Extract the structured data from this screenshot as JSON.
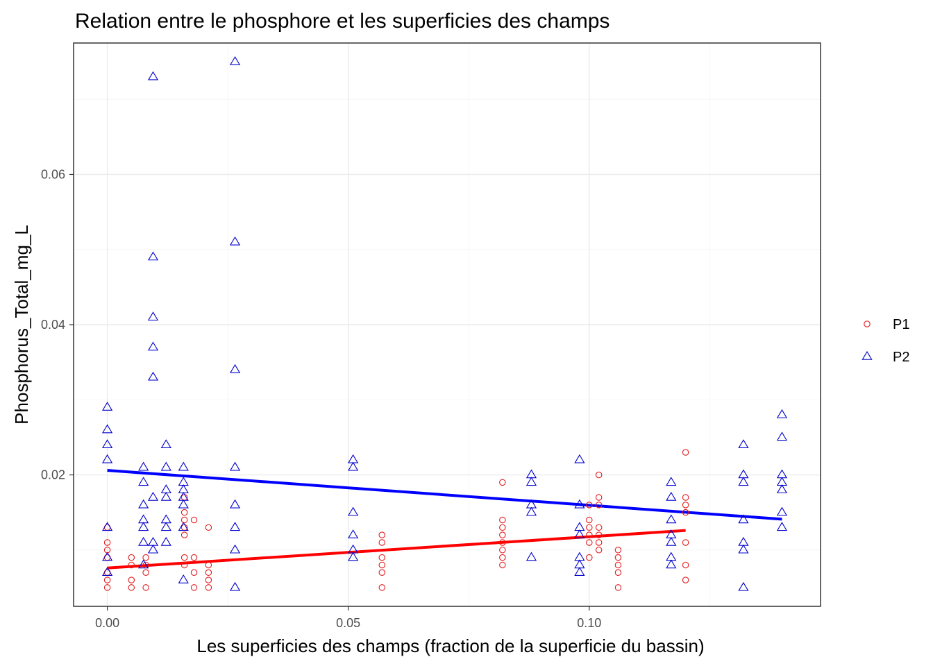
{
  "chart_data": {
    "type": "scatter",
    "title": "Relation entre le phosphore et les superficies des champs",
    "xlabel": "Les superficies des champs (fraction de la superficie du bassin)",
    "ylabel": "Phosphorus_Total_mg_L",
    "xlim": [
      -0.007,
      0.148
    ],
    "ylim": [
      0.0025,
      0.0775
    ],
    "x_ticks": [
      0.0,
      0.05,
      0.1
    ],
    "x_tick_labels": [
      "0.00",
      "0.05",
      "0.10"
    ],
    "y_ticks": [
      0.02,
      0.04,
      0.06
    ],
    "y_tick_labels": [
      "0.02",
      "0.04",
      "0.06"
    ],
    "grid": true,
    "legend_position": "right",
    "series": [
      {
        "name": "P1",
        "color": "#e41a1c",
        "marker": "circle",
        "points": [
          [
            0.0,
            0.005
          ],
          [
            0.0,
            0.006
          ],
          [
            0.0,
            0.007
          ],
          [
            0.0,
            0.009
          ],
          [
            0.0,
            0.01
          ],
          [
            0.0,
            0.011
          ],
          [
            0.0,
            0.013
          ],
          [
            0.005,
            0.005
          ],
          [
            0.005,
            0.006
          ],
          [
            0.005,
            0.008
          ],
          [
            0.005,
            0.009
          ],
          [
            0.008,
            0.005
          ],
          [
            0.008,
            0.007
          ],
          [
            0.008,
            0.008
          ],
          [
            0.008,
            0.009
          ],
          [
            0.016,
            0.008
          ],
          [
            0.016,
            0.009
          ],
          [
            0.016,
            0.012
          ],
          [
            0.016,
            0.013
          ],
          [
            0.016,
            0.014
          ],
          [
            0.016,
            0.015
          ],
          [
            0.016,
            0.017
          ],
          [
            0.018,
            0.005
          ],
          [
            0.018,
            0.007
          ],
          [
            0.018,
            0.009
          ],
          [
            0.018,
            0.014
          ],
          [
            0.021,
            0.005
          ],
          [
            0.021,
            0.006
          ],
          [
            0.021,
            0.007
          ],
          [
            0.021,
            0.008
          ],
          [
            0.021,
            0.013
          ],
          [
            0.057,
            0.005
          ],
          [
            0.057,
            0.007
          ],
          [
            0.057,
            0.008
          ],
          [
            0.057,
            0.009
          ],
          [
            0.057,
            0.011
          ],
          [
            0.057,
            0.012
          ],
          [
            0.082,
            0.008
          ],
          [
            0.082,
            0.009
          ],
          [
            0.082,
            0.01
          ],
          [
            0.082,
            0.011
          ],
          [
            0.082,
            0.012
          ],
          [
            0.082,
            0.013
          ],
          [
            0.082,
            0.014
          ],
          [
            0.082,
            0.019
          ],
          [
            0.1,
            0.009
          ],
          [
            0.1,
            0.011
          ],
          [
            0.1,
            0.012
          ],
          [
            0.1,
            0.013
          ],
          [
            0.1,
            0.014
          ],
          [
            0.1,
            0.016
          ],
          [
            0.102,
            0.01
          ],
          [
            0.102,
            0.011
          ],
          [
            0.102,
            0.012
          ],
          [
            0.102,
            0.013
          ],
          [
            0.102,
            0.016
          ],
          [
            0.102,
            0.017
          ],
          [
            0.102,
            0.02
          ],
          [
            0.106,
            0.005
          ],
          [
            0.106,
            0.007
          ],
          [
            0.106,
            0.008
          ],
          [
            0.106,
            0.009
          ],
          [
            0.106,
            0.01
          ],
          [
            0.12,
            0.006
          ],
          [
            0.12,
            0.008
          ],
          [
            0.12,
            0.011
          ],
          [
            0.12,
            0.015
          ],
          [
            0.12,
            0.016
          ],
          [
            0.12,
            0.017
          ],
          [
            0.12,
            0.023
          ]
        ],
        "trend": [
          [
            0.0,
            0.0076
          ],
          [
            0.12,
            0.0126
          ]
        ]
      },
      {
        "name": "P2",
        "color": "#0000cd",
        "marker": "triangle",
        "points": [
          [
            0.0,
            0.007
          ],
          [
            0.0,
            0.009
          ],
          [
            0.0,
            0.013
          ],
          [
            0.0,
            0.022
          ],
          [
            0.0,
            0.024
          ],
          [
            0.0,
            0.026
          ],
          [
            0.0,
            0.029
          ],
          [
            0.0075,
            0.008
          ],
          [
            0.0075,
            0.011
          ],
          [
            0.0075,
            0.013
          ],
          [
            0.0075,
            0.014
          ],
          [
            0.0075,
            0.016
          ],
          [
            0.0075,
            0.019
          ],
          [
            0.0075,
            0.021
          ],
          [
            0.0095,
            0.01
          ],
          [
            0.0095,
            0.011
          ],
          [
            0.0095,
            0.017
          ],
          [
            0.0095,
            0.033
          ],
          [
            0.0095,
            0.037
          ],
          [
            0.0095,
            0.041
          ],
          [
            0.0095,
            0.049
          ],
          [
            0.0095,
            0.073
          ],
          [
            0.0122,
            0.011
          ],
          [
            0.0122,
            0.013
          ],
          [
            0.0122,
            0.014
          ],
          [
            0.0122,
            0.017
          ],
          [
            0.0122,
            0.018
          ],
          [
            0.0122,
            0.021
          ],
          [
            0.0122,
            0.024
          ],
          [
            0.0158,
            0.006
          ],
          [
            0.0158,
            0.013
          ],
          [
            0.0158,
            0.016
          ],
          [
            0.0158,
            0.017
          ],
          [
            0.0158,
            0.018
          ],
          [
            0.0158,
            0.019
          ],
          [
            0.0158,
            0.021
          ],
          [
            0.0265,
            0.005
          ],
          [
            0.0265,
            0.01
          ],
          [
            0.0265,
            0.013
          ],
          [
            0.0265,
            0.016
          ],
          [
            0.0265,
            0.021
          ],
          [
            0.0265,
            0.034
          ],
          [
            0.0265,
            0.051
          ],
          [
            0.0265,
            0.075
          ],
          [
            0.051,
            0.009
          ],
          [
            0.051,
            0.01
          ],
          [
            0.051,
            0.012
          ],
          [
            0.051,
            0.015
          ],
          [
            0.051,
            0.021
          ],
          [
            0.051,
            0.022
          ],
          [
            0.088,
            0.009
          ],
          [
            0.088,
            0.015
          ],
          [
            0.088,
            0.016
          ],
          [
            0.088,
            0.019
          ],
          [
            0.088,
            0.02
          ],
          [
            0.098,
            0.007
          ],
          [
            0.098,
            0.008
          ],
          [
            0.098,
            0.009
          ],
          [
            0.098,
            0.012
          ],
          [
            0.098,
            0.013
          ],
          [
            0.098,
            0.016
          ],
          [
            0.098,
            0.022
          ],
          [
            0.117,
            0.008
          ],
          [
            0.117,
            0.009
          ],
          [
            0.117,
            0.011
          ],
          [
            0.117,
            0.012
          ],
          [
            0.117,
            0.014
          ],
          [
            0.117,
            0.017
          ],
          [
            0.117,
            0.019
          ],
          [
            0.132,
            0.005
          ],
          [
            0.132,
            0.01
          ],
          [
            0.132,
            0.011
          ],
          [
            0.132,
            0.014
          ],
          [
            0.132,
            0.019
          ],
          [
            0.132,
            0.02
          ],
          [
            0.132,
            0.024
          ],
          [
            0.14,
            0.013
          ],
          [
            0.14,
            0.015
          ],
          [
            0.14,
            0.018
          ],
          [
            0.14,
            0.019
          ],
          [
            0.14,
            0.02
          ],
          [
            0.14,
            0.025
          ],
          [
            0.14,
            0.028
          ]
        ],
        "trend": [
          [
            0.0,
            0.0206
          ],
          [
            0.14,
            0.0141
          ]
        ]
      }
    ]
  }
}
